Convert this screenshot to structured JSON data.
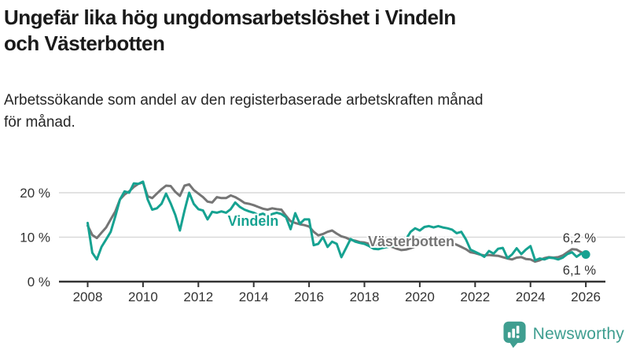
{
  "header": {
    "title_lines": [
      "Ungefär lika hög ungdomsarbetslöshet i Vindeln",
      "och Västerbotten"
    ],
    "subtitle_lines": [
      "Arbetssökande som andel av den registerbaserade arbetskraften månad",
      "för månad."
    ]
  },
  "footer": {
    "brand": "Newsworthy",
    "brand_color": "#3f9e90",
    "logo_icon": "bar-chart-speech-bubble-icon"
  },
  "colors": {
    "vindeln": "#16a291",
    "vasterbotten": "#757575",
    "gridline": "#d9d9d9",
    "axis": "#333333",
    "tick_label": "#333333",
    "end_label": "#333333",
    "title": "#1a1a1a"
  },
  "chart_data": {
    "type": "line",
    "title": "Ungefär lika hög ungdomsarbetslöshet i Vindeln och Västerbotten",
    "subtitle": "Arbetssökande som andel av den registerbaserade arbetskraften månad för månad.",
    "xlabel": "",
    "ylabel": "",
    "x_start_year": 2008,
    "x_step_months": 2,
    "x_end_year": 2026,
    "x_ticks": [
      2008,
      2010,
      2012,
      2014,
      2016,
      2018,
      2020,
      2022,
      2024,
      2026
    ],
    "x_tick_labels": [
      "2008",
      "2010",
      "2012",
      "2014",
      "2016",
      "2018",
      "2020",
      "2022",
      "2024",
      "2026"
    ],
    "ylim": [
      0,
      23.5
    ],
    "yticks": [
      0,
      10,
      20
    ],
    "ytick_labels": [
      "0 %",
      "10 %",
      "20 %"
    ],
    "grid": true,
    "legend": "inline-labels",
    "series": [
      {
        "name": "Vindeln",
        "color": "#16a291",
        "end_label": "6,1 %",
        "end_value": 6.1,
        "values": [
          13.2,
          6.5,
          5.0,
          7.8,
          9.5,
          11.2,
          14.7,
          18.5,
          20.3,
          20.0,
          22.1,
          22.0,
          22.5,
          18.5,
          16.2,
          16.5,
          17.5,
          19.8,
          17.6,
          15.0,
          11.5,
          16.0,
          20.0,
          17.5,
          16.3,
          16.0,
          14.0,
          15.7,
          15.5,
          15.8,
          15.5,
          16.3,
          17.8,
          16.8,
          16.2,
          15.8,
          15.5,
          15.0,
          15.3,
          14.8,
          15.2,
          15.5,
          15.2,
          14.5,
          11.8,
          15.4,
          13.0,
          14.0,
          14.0,
          8.2,
          8.5,
          10.0,
          7.8,
          9.0,
          8.5,
          5.5,
          7.5,
          9.6,
          9.0,
          8.7,
          8.5,
          8.0,
          7.4,
          7.3,
          7.6,
          7.8,
          8.0,
          8.3,
          8.8,
          9.5,
          11.2,
          12.0,
          11.5,
          12.3,
          12.5,
          12.2,
          12.5,
          12.2,
          12.0,
          11.7,
          10.9,
          11.2,
          9.5,
          7.2,
          6.7,
          6.2,
          5.6,
          6.9,
          6.3,
          7.4,
          7.6,
          5.3,
          6.1,
          7.5,
          6.2,
          7.2,
          8.0,
          4.8,
          5.2,
          5.0,
          5.4,
          5.3,
          5.0,
          5.4,
          6.2,
          6.6,
          5.6,
          6.3,
          6.1
        ]
      },
      {
        "name": "Västerbotten",
        "color": "#757575",
        "end_label": "6,2 %",
        "end_value": 6.2,
        "values": [
          12.6,
          10.5,
          9.8,
          11.0,
          12.2,
          14.0,
          15.8,
          18.5,
          19.6,
          20.3,
          21.3,
          22.0,
          22.3,
          19.2,
          18.8,
          19.8,
          20.8,
          21.6,
          21.5,
          20.2,
          19.3,
          21.6,
          21.9,
          20.6,
          19.8,
          19.0,
          18.0,
          17.8,
          19.0,
          18.8,
          18.8,
          19.4,
          19.0,
          18.4,
          17.7,
          17.5,
          17.2,
          16.8,
          16.4,
          16.2,
          16.5,
          16.3,
          16.2,
          14.8,
          13.6,
          13.2,
          12.9,
          12.7,
          12.4,
          11.2,
          10.4,
          10.7,
          11.2,
          11.5,
          10.8,
          10.2,
          9.9,
          9.4,
          9.2,
          8.9,
          8.8,
          8.5,
          8.4,
          8.3,
          8.2,
          8.0,
          7.8,
          7.4,
          7.1,
          7.2,
          7.5,
          7.9,
          8.3,
          9.0,
          9.6,
          9.8,
          9.5,
          9.2,
          9.0,
          8.7,
          8.3,
          7.8,
          7.3,
          6.6,
          6.4,
          6.1,
          5.9,
          6.0,
          5.9,
          5.8,
          5.5,
          5.2,
          5.0,
          5.4,
          5.5,
          5.1,
          5.0,
          4.5,
          4.8,
          5.3,
          5.5,
          5.4,
          5.5,
          5.9,
          6.6,
          7.3,
          7.2,
          6.6,
          6.2
        ]
      }
    ]
  }
}
